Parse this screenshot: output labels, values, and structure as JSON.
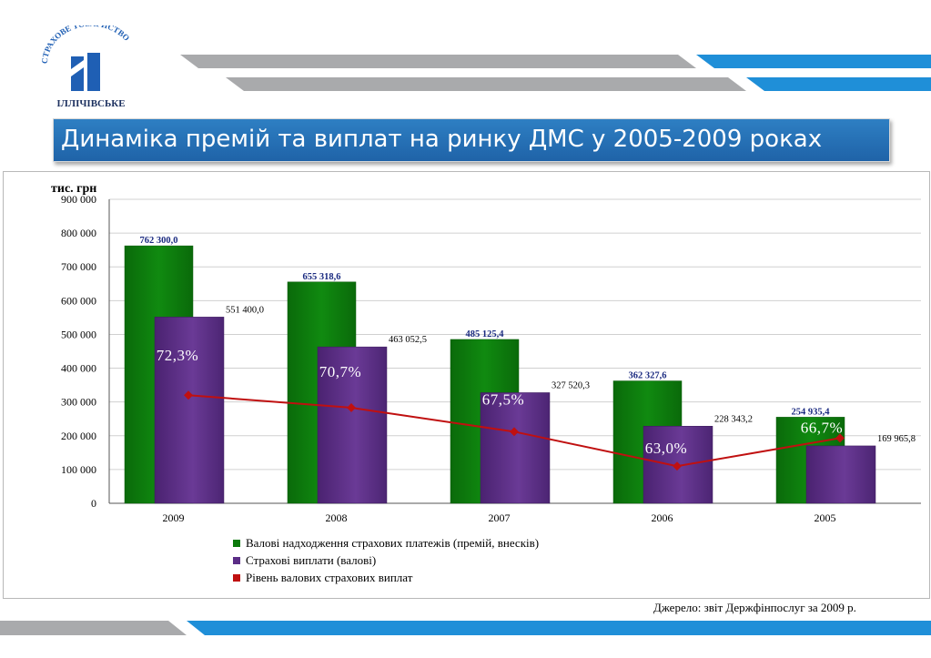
{
  "logo": {
    "arc_text": "СТРАХОВЕ ТОВАРИСТВО",
    "name": "ІЛЛІЧІВСЬКЕ",
    "colors": {
      "blue": "#1f5fb4",
      "dark": "#1b2f5e"
    }
  },
  "title": "Динаміка премій та виплат на ринку ДМС у 2005-2009 роках",
  "source": "Джерело: звіт Держфінпослуг за 2009 р.",
  "chart_data": {
    "type": "bar",
    "unit_label": "тис. грн",
    "categories": [
      "2009",
      "2008",
      "2007",
      "2006",
      "2005"
    ],
    "ylim": [
      0,
      900000
    ],
    "y_ticks": [
      "0",
      "100 000",
      "200 000",
      "300 000",
      "400 000",
      "500 000",
      "600 000",
      "700 000",
      "800 000",
      "900 000"
    ],
    "grid": true,
    "legend_position": "bottom",
    "series": [
      {
        "name": "Валові надходження страхових  платежів (премій, внесків)",
        "type": "bar",
        "color": "#0b7a0b",
        "values": [
          762300.0,
          655318.6,
          485125.4,
          362327.6,
          254935.4
        ],
        "labels": [
          "762 300,0",
          "655 318,6",
          "485 125,4",
          "362 327,6",
          "254 935,4"
        ]
      },
      {
        "name": "Страхові виплати  (валові)",
        "type": "bar",
        "color": "#5b2d86",
        "values": [
          551400.0,
          463052.5,
          327520.3,
          228343.2,
          169965.8
        ],
        "labels": [
          "551 400,0",
          "463 052,5",
          "327 520,3",
          "228 343,2",
          "169 965,8"
        ]
      },
      {
        "name": "Рівень валових страхових виплат",
        "type": "line",
        "color": "#c01010",
        "values": [
          72.3,
          70.7,
          67.5,
          63.0,
          66.7
        ],
        "labels": [
          "72,3%",
          "70,7%",
          "67,5%",
          "63,0%",
          "66,7%"
        ],
        "line_positions": [
          320000,
          283000,
          212000,
          110000,
          193000
        ]
      }
    ]
  }
}
